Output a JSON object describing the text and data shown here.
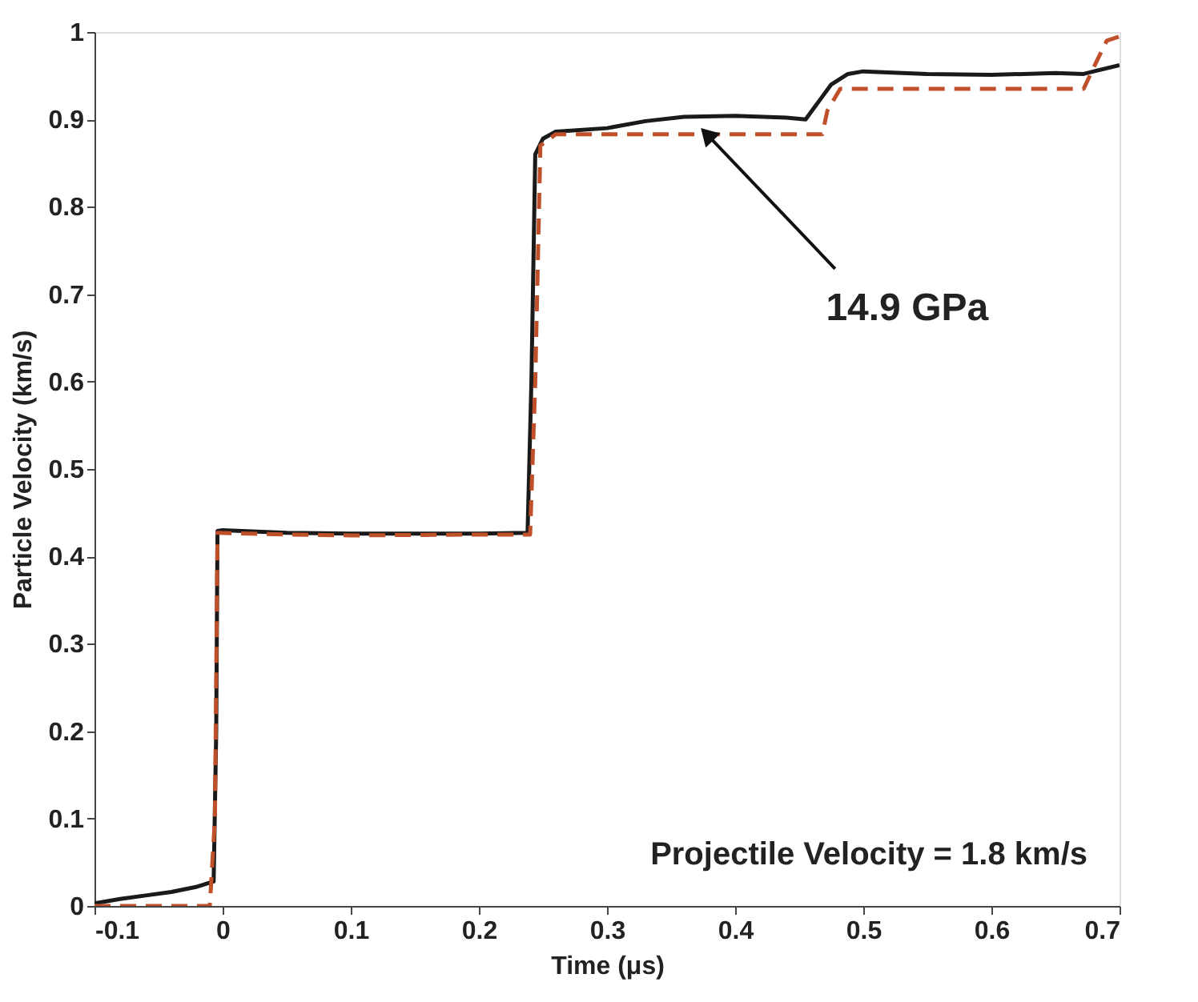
{
  "chart_data": {
    "type": "line",
    "xlabel": "Time (μs)",
    "ylabel": "Particle Velocity (km/s)",
    "xlim": [
      -0.1,
      0.7
    ],
    "xticks": [
      -0.1,
      0,
      0.1,
      0.2,
      0.3,
      0.4,
      0.5,
      0.6,
      0.7
    ],
    "ylim": [
      0,
      1
    ],
    "yticks": [
      0,
      0.1,
      0.2,
      0.3,
      0.4,
      0.5,
      0.6,
      0.7,
      0.8,
      0.9,
      1
    ],
    "grid": false,
    "marker": "none",
    "series": [
      {
        "color": "#1a1a1a",
        "line_style": "solid",
        "x": [
          -0.1,
          -0.08,
          -0.06,
          -0.04,
          -0.02,
          -0.007,
          -0.005,
          -0.004,
          0.0,
          0.05,
          0.1,
          0.15,
          0.2,
          0.238,
          0.241,
          0.244,
          0.25,
          0.26,
          0.3,
          0.33,
          0.36,
          0.4,
          0.44,
          0.455,
          0.465,
          0.475,
          0.488,
          0.5,
          0.55,
          0.6,
          0.65,
          0.672,
          0.68,
          0.7
        ],
        "values": [
          0.003,
          0.008,
          0.012,
          0.016,
          0.022,
          0.028,
          0.2,
          0.429,
          0.43,
          0.427,
          0.426,
          0.426,
          0.426,
          0.427,
          0.6,
          0.86,
          0.878,
          0.886,
          0.89,
          0.898,
          0.903,
          0.904,
          0.902,
          0.9,
          0.92,
          0.94,
          0.952,
          0.955,
          0.952,
          0.951,
          0.953,
          0.952,
          0.955,
          0.962
        ]
      },
      {
        "color": "#c0502a",
        "line_style": "dashed",
        "x": [
          -0.1,
          -0.01,
          -0.006,
          -0.004,
          0.05,
          0.1,
          0.2,
          0.24,
          0.244,
          0.248,
          0.26,
          0.35,
          0.468,
          0.472,
          0.482,
          0.55,
          0.672,
          0.68,
          0.69,
          0.7
        ],
        "values": [
          0.0,
          0.0,
          0.1,
          0.427,
          0.425,
          0.424,
          0.425,
          0.425,
          0.6,
          0.87,
          0.883,
          0.883,
          0.883,
          0.91,
          0.935,
          0.935,
          0.935,
          0.96,
          0.99,
          0.995
        ]
      }
    ],
    "annotations": [
      {
        "text": "14.9 GPa",
        "x": 0.378,
        "y": 0.883
      },
      "Projectile Velocity = 1.8 km/s"
    ]
  }
}
